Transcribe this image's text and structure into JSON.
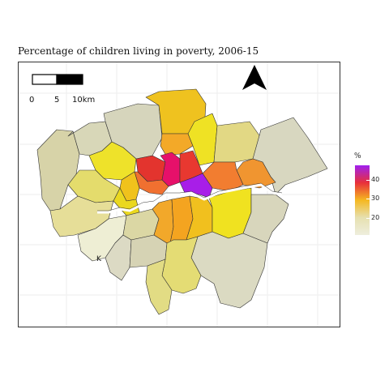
{
  "title": "Percentage of children living in poverty, 2006-15",
  "scalebar": {
    "labels": [
      "0",
      "5",
      "10km"
    ]
  },
  "north_arrow": {
    "icon": "north-arrow-icon"
  },
  "legend": {
    "title": "%",
    "ticks": [
      "40",
      "30",
      "20"
    ],
    "colors": [
      "#a020f0",
      "#e8303a",
      "#f5b820",
      "#e6e0b0",
      "#eeeedd"
    ]
  },
  "labels": {
    "k": "K"
  },
  "chart_data": {
    "type": "choropleth",
    "variable": "Percentage of children living in poverty",
    "color_range": [
      15,
      45
    ],
    "regions": [
      {
        "id": "barnet",
        "value": 26
      },
      {
        "id": "enfield",
        "value": 28
      },
      {
        "id": "haringey",
        "value": 31
      },
      {
        "id": "waltham-forest",
        "value": 28
      },
      {
        "id": "redbridge",
        "value": 23
      },
      {
        "id": "havering",
        "value": 18
      },
      {
        "id": "barking",
        "value": 32
      },
      {
        "id": "newham",
        "value": 35
      },
      {
        "id": "tower-hamlets",
        "value": 45
      },
      {
        "id": "hackney",
        "value": 40
      },
      {
        "id": "islington",
        "value": 42
      },
      {
        "id": "camden",
        "value": 36
      },
      {
        "id": "westminster",
        "value": 36
      },
      {
        "id": "brent",
        "value": 34
      },
      {
        "id": "harrow",
        "value": 18
      },
      {
        "id": "hillingdon",
        "value": 21
      },
      {
        "id": "ealing",
        "value": 25
      },
      {
        "id": "hounslow",
        "value": 24
      },
      {
        "id": "hammersmith",
        "value": 31
      },
      {
        "id": "kensington",
        "value": 28
      },
      {
        "id": "wandsworth",
        "value": 26
      },
      {
        "id": "lambeth",
        "value": 33
      },
      {
        "id": "southwark",
        "value": 34
      },
      {
        "id": "lewisham",
        "value": 31
      },
      {
        "id": "greenwich",
        "value": 29
      },
      {
        "id": "bexley",
        "value": 19
      },
      {
        "id": "bromley",
        "value": 17
      },
      {
        "id": "croydon",
        "value": 26
      },
      {
        "id": "sutton",
        "value": 19
      },
      {
        "id": "merton",
        "value": 19
      },
      {
        "id": "kingston",
        "value": 17
      },
      {
        "id": "richmond",
        "value": 14
      }
    ]
  }
}
